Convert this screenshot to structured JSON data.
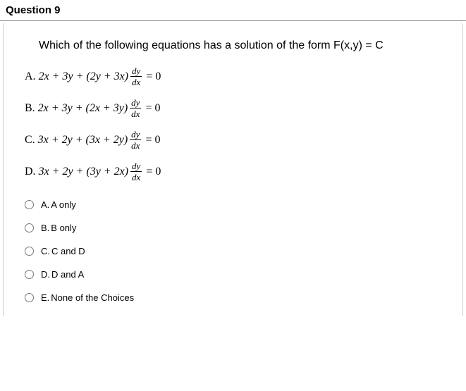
{
  "header": "Question 9",
  "question_text": "Which of the following equations has a solution of the form F(x,y) = C",
  "equations": {
    "a": {
      "label": "A.",
      "body": "2x + 3y + (2y + 3x)",
      "frac_top": "dy",
      "frac_bot": "dx",
      "tail": "= 0"
    },
    "b": {
      "label": "B.",
      "body": "2x + 3y + (2x + 3y)",
      "frac_top": "dy",
      "frac_bot": "dx",
      "tail": "= 0"
    },
    "c": {
      "label": "C.",
      "body": "3x + 2y + (3x + 2y)",
      "frac_top": "dy",
      "frac_bot": "dx",
      "tail": "= 0"
    },
    "d": {
      "label": "D.",
      "body": "3x + 2y + (3y + 2x)",
      "frac_top": "dy",
      "frac_bot": "dx",
      "tail": "= 0"
    }
  },
  "options": {
    "a": {
      "letter": "A.",
      "text": "A only"
    },
    "b": {
      "letter": "B.",
      "text": "B only"
    },
    "c": {
      "letter": "C.",
      "text": "C and D"
    },
    "d": {
      "letter": "D.",
      "text": "D and A"
    },
    "e": {
      "letter": "E.",
      "text": "None of the Choices"
    }
  }
}
